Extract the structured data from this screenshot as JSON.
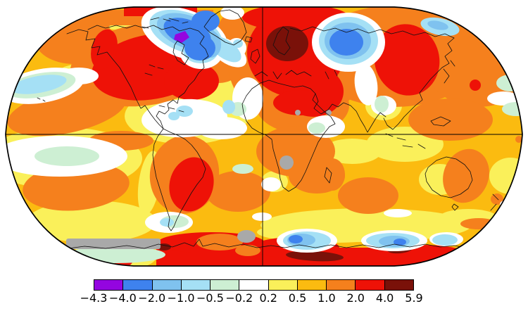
{
  "page": {
    "background": "#FFFFFF"
  },
  "chart_data": {
    "type": "heatmap",
    "subtype": "global-surface-temperature-anomaly-map",
    "projection": "Robinson-style world map with equator and central-meridian gridlines",
    "title": "",
    "legend_position": "bottom",
    "colorbar": {
      "orientation": "horizontal",
      "boundary_values": [
        -4.3,
        -4.0,
        -2.0,
        -1.0,
        -0.5,
        -0.2,
        0.2,
        0.5,
        1.0,
        2.0,
        4.0,
        5.9
      ],
      "boundary_labels": [
        "−4.3",
        "−4.0",
        "−2.0",
        "−1.0",
        "−0.5",
        "−0.2",
        "0.2",
        "0.5",
        "1.0",
        "2.0",
        "4.0",
        "5.9"
      ],
      "segment_colors": [
        "#9405E0",
        "#3E82EE",
        "#7FC2EF",
        "#A5E0F5",
        "#CDEFD3",
        "#FFFFFF",
        "#FAF05A",
        "#FBBB10",
        "#F5801D",
        "#EE1207",
        "#7A1109"
      ],
      "missing_data_color": "#A9A9A9",
      "outline_color": "#000000"
    },
    "regions": [
      {
        "region": "Contiguous United States and central North America",
        "anomaly_c": "2.0 to 4.0"
      },
      {
        "region": "Western North Atlantic off US east coast",
        "anomaly_c": "2.0 to 4.0"
      },
      {
        "region": "Northeastern Canada, Hudson Bay and Baffin region",
        "anomaly_c": "-2.0 to -4.0 with small core below -4.3"
      },
      {
        "region": "Scandinavia and Baltic",
        "anomaly_c": "4.0 to 5.9"
      },
      {
        "region": "Europe, Middle East and northeastern Sahara",
        "anomaly_c": "2.0 to 4.0"
      },
      {
        "region": "Western Siberia",
        "anomaly_c": "-2.0 to -4.0"
      },
      {
        "region": "Eastern Siberia and Mongolia",
        "anomaly_c": "2.0 to 4.0"
      },
      {
        "region": "Alaska, Bering Sea and North Pacific",
        "anomaly_c": "1.0 to 2.0"
      },
      {
        "region": "Tropical oceans and Caribbean",
        "anomaly_c": "-0.2 to 0.2"
      },
      {
        "region": "Argentina and southern Brazil",
        "anomaly_c": "2.0 to 4.0"
      },
      {
        "region": "South Pacific and South Atlantic warm pools",
        "anomaly_c": "1.0 to 2.0"
      },
      {
        "region": "West Antarctica and Ross/Weddell coast",
        "anomaly_c": "2.0 to 5.9"
      },
      {
        "region": "East Antarctic coastal patches",
        "anomaly_c": "-1.0 to -4.0"
      },
      {
        "region": "Most mid-latitude oceans",
        "anomaly_c": "0.2 to 2.0"
      },
      {
        "region": "Southern Ocean band and scattered interior spots",
        "anomaly_c": "no data (gray)"
      }
    ]
  }
}
